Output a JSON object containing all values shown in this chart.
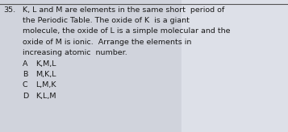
{
  "question_number": "35.",
  "question_text_lines": [
    "K, L and M are elements in the same short  period of",
    "the Periodic Table. The oxide of K  is a giant",
    "molecule, the oxide of L is a simple molecular and the",
    "oxide of M is ionic.  Arrange the elements in",
    "increasing atomic  number."
  ],
  "options": [
    {
      "label": "A",
      "text": "K,M,L"
    },
    {
      "label": "B",
      "text": "M,K,L"
    },
    {
      "label": "C",
      "text": "L,M,K"
    },
    {
      "label": "D",
      "text": "K,L,M"
    }
  ],
  "bg_left_color": "#d0d3dc",
  "bg_right_color": "#dde0e8",
  "text_color": "#1a1a1a",
  "divider_color": "#555555",
  "font_size": 6.8,
  "fig_width": 3.57,
  "fig_height": 1.64,
  "dpi": 100
}
